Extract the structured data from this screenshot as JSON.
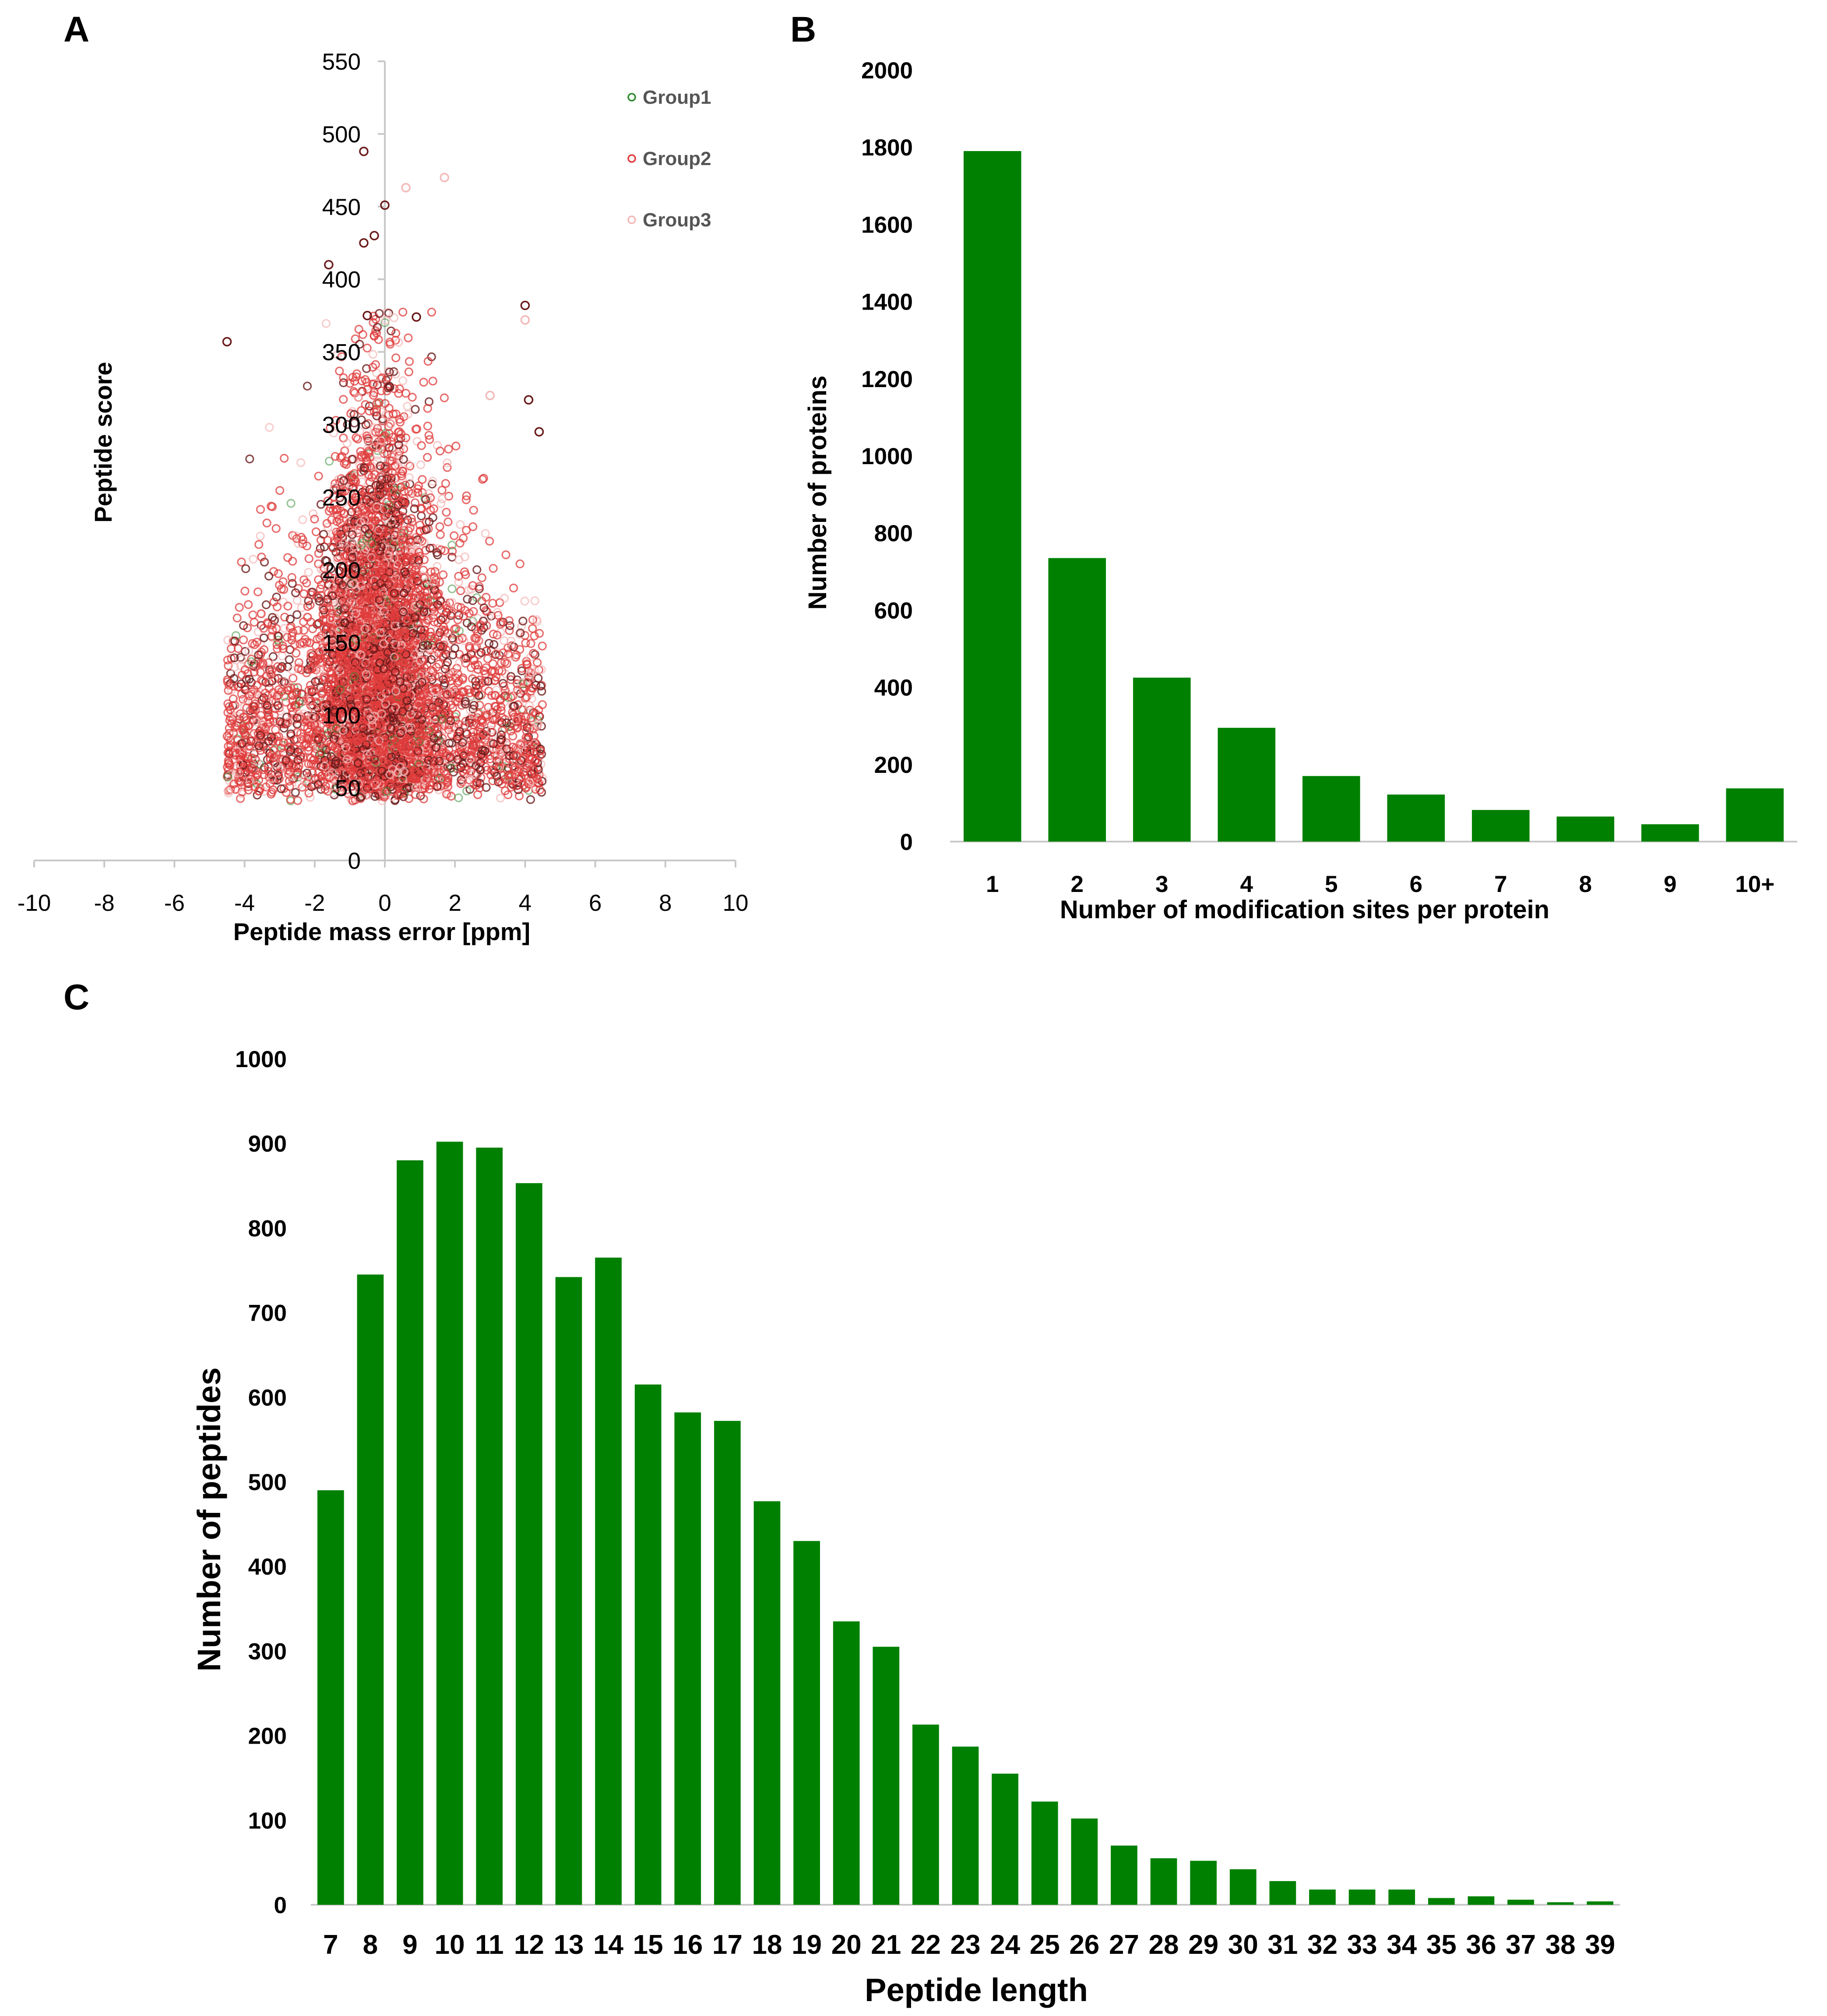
{
  "panels": {
    "a": {
      "letter": "A"
    },
    "b": {
      "letter": "B"
    },
    "c": {
      "letter": "C"
    }
  },
  "colors": {
    "bar": "#008000",
    "group1": "#2e8b2e",
    "group2": "#e03c3c",
    "group2_dark": "#6b1a1a",
    "group3": "#f3b8b8",
    "axis": "#c8c8c8"
  },
  "chart_data": [
    {
      "id": "a",
      "type": "scatter",
      "title": "",
      "xlabel": "Peptide mass error [ppm]",
      "ylabel": "Peptide score",
      "xlim": [
        -10,
        10
      ],
      "ylim": [
        0,
        550
      ],
      "xticks": [
        -10,
        -8,
        -6,
        -4,
        -2,
        0,
        2,
        4,
        6,
        8,
        10
      ],
      "yticks": [
        0,
        50,
        100,
        150,
        200,
        250,
        300,
        350,
        400,
        450,
        500,
        550
      ],
      "legend_position": "top-right",
      "series": [
        {
          "name": "Group1",
          "marker": "open-circle",
          "description_points": "sparse"
        },
        {
          "name": "Group2",
          "marker": "open-circle",
          "description_points": "dense"
        },
        {
          "name": "Group3",
          "marker": "open-circle",
          "description_points": "faint"
        }
      ],
      "distribution": {
        "x_range": [
          -4.5,
          4.5
        ],
        "x_center": -0.2,
        "score_min": 40,
        "score_mode": 100,
        "outliers": [
          {
            "x": -4.5,
            "y": 357,
            "series": "Group2"
          },
          {
            "x": -1.6,
            "y": 410,
            "series": "Group2"
          },
          {
            "x": -0.6,
            "y": 488,
            "series": "Group2"
          },
          {
            "x": -0.6,
            "y": 425,
            "series": "Group2"
          },
          {
            "x": -0.3,
            "y": 430,
            "series": "Group2"
          },
          {
            "x": 0.0,
            "y": 451,
            "series": "Group2"
          },
          {
            "x": 1.7,
            "y": 470,
            "series": "Group3"
          },
          {
            "x": 0.6,
            "y": 463,
            "series": "Group3"
          },
          {
            "x": 4.0,
            "y": 382,
            "series": "Group2"
          },
          {
            "x": 4.0,
            "y": 372,
            "series": "Group3"
          },
          {
            "x": 4.1,
            "y": 317,
            "series": "Group2"
          },
          {
            "x": 4.4,
            "y": 295,
            "series": "Group2"
          },
          {
            "x": 3.0,
            "y": 320,
            "series": "Group3"
          },
          {
            "x": 0.9,
            "y": 374,
            "series": "Group2"
          },
          {
            "x": -0.5,
            "y": 375,
            "series": "Group2"
          }
        ]
      }
    },
    {
      "id": "b",
      "type": "bar",
      "title": "",
      "xlabel": "Number of modification sites per protein",
      "ylabel": "Number of proteins",
      "categories": [
        "1",
        "2",
        "3",
        "4",
        "5",
        "6",
        "7",
        "8",
        "9",
        "10+"
      ],
      "values": [
        1790,
        735,
        425,
        295,
        170,
        122,
        82,
        65,
        45,
        138
      ],
      "ylim": [
        0,
        2000
      ],
      "yticks": [
        0,
        200,
        400,
        600,
        800,
        1000,
        1200,
        1400,
        1600,
        1800,
        2000
      ]
    },
    {
      "id": "c",
      "type": "bar",
      "title": "",
      "xlabel": "Peptide length",
      "ylabel": "Number of peptides",
      "categories": [
        "7",
        "8",
        "9",
        "10",
        "11",
        "12",
        "13",
        "14",
        "15",
        "16",
        "17",
        "18",
        "19",
        "20",
        "21",
        "22",
        "23",
        "24",
        "25",
        "26",
        "27",
        "28",
        "29",
        "30",
        "31",
        "32",
        "33",
        "34",
        "35",
        "36",
        "37",
        "38",
        "39"
      ],
      "values": [
        490,
        745,
        880,
        902,
        895,
        853,
        742,
        765,
        615,
        582,
        572,
        477,
        430,
        335,
        305,
        213,
        187,
        155,
        122,
        102,
        70,
        55,
        52,
        42,
        28,
        18,
        18,
        18,
        8,
        10,
        6,
        3,
        4
      ],
      "ylim": [
        0,
        1000
      ],
      "yticks": [
        0,
        100,
        200,
        300,
        400,
        500,
        600,
        700,
        800,
        900,
        1000
      ]
    }
  ]
}
